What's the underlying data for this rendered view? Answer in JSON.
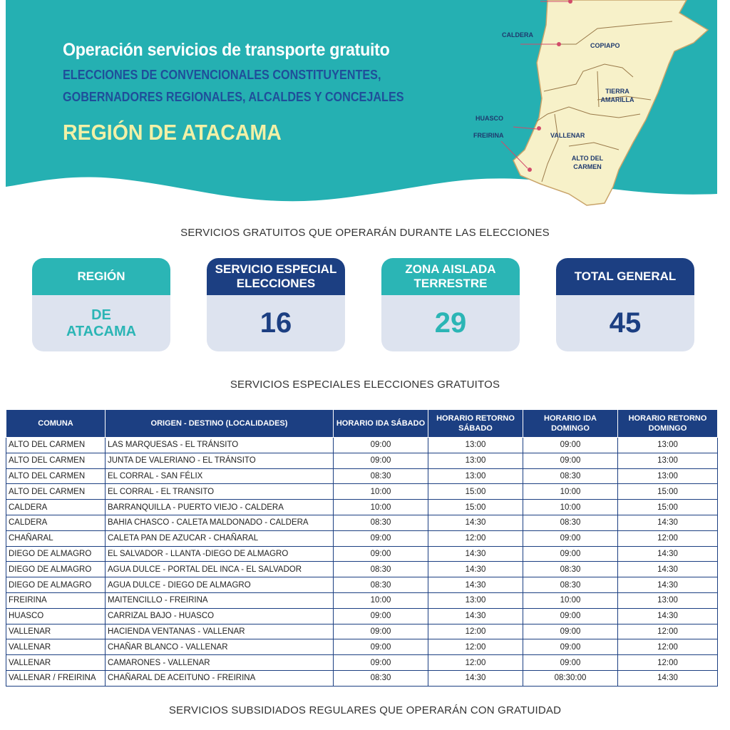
{
  "header": {
    "title": "Operación servicios de transporte gratuito",
    "subtitle_line1": "ELECCIONES DE CONVENCIONALES CONSTITUYENTES,",
    "subtitle_line2": "GOBERNADORES REGIONALES, ALCALDES Y CONCEJALES",
    "region": "REGIÓN DE ATACAMA"
  },
  "map": {
    "labels": {
      "caldera": "CALDERA",
      "copiapo": "COPIAPO",
      "tierra_amarilla": "TIERRA AMARILLA",
      "huasco": "HUASCO",
      "freirina": "FREIRINA",
      "vallenar": "VALLENAR",
      "alto_del_carmen": "ALTO DEL CARMEN"
    }
  },
  "summary": {
    "heading": "SERVICIOS GRATUITOS QUE OPERARÁN DURANTE LAS ELECCIONES",
    "cards": [
      {
        "label": "REGIÓN",
        "value": "DE ATACAMA"
      },
      {
        "label": "SERVICIO ESPECIAL ELECCIONES",
        "value": "16"
      },
      {
        "label": "ZONA AISLADA TERRESTRE",
        "value": "29"
      },
      {
        "label": "TOTAL GENERAL",
        "value": "45"
      }
    ]
  },
  "special": {
    "heading": "SERVICIOS ESPECIALES ELECCIONES GRATUITOS",
    "columns": [
      "COMUNA",
      "ORIGEN - DESTINO (LOCALIDADES)",
      "HORARIO IDA SÁBADO",
      "HORARIO RETORNO SÁBADO",
      "HORARIO IDA DOMINGO",
      "HORARIO RETORNO DOMINGO"
    ],
    "rows": [
      [
        "ALTO DEL CARMEN",
        "LAS MARQUESAS - EL TRÁNSITO",
        "09:00",
        "13:00",
        "09:00",
        "13:00"
      ],
      [
        "ALTO DEL CARMEN",
        "JUNTA DE VALERIANO - EL TRÁNSITO",
        "09:00",
        "13:00",
        "09:00",
        "13:00"
      ],
      [
        "ALTO DEL CARMEN",
        "EL CORRAL - SAN FÉLIX",
        "08:30",
        "13:00",
        "08:30",
        "13:00"
      ],
      [
        "ALTO DEL CARMEN",
        "EL CORRAL - EL TRANSITO",
        "10:00",
        "15:00",
        "10:00",
        "15:00"
      ],
      [
        "CALDERA",
        "BARRANQUILLA - PUERTO VIEJO - CALDERA",
        "10:00",
        "15:00",
        "10:00",
        "15:00"
      ],
      [
        "CALDERA",
        "BAHIA CHASCO - CALETA MALDONADO - CALDERA",
        "08:30",
        "14:30",
        "08:30",
        "14:30"
      ],
      [
        "CHAÑARAL",
        "CALETA PAN DE AZUCAR - CHAÑARAL",
        "09:00",
        "12:00",
        "09:00",
        "12:00"
      ],
      [
        "DIEGO DE ALMAGRO",
        "EL SALVADOR - LLANTA  -DIEGO DE ALMAGRO",
        "09:00",
        "14:30",
        "09:00",
        "14:30"
      ],
      [
        "DIEGO DE ALMAGRO",
        "AGUA DULCE - PORTAL DEL INCA - EL SALVADOR",
        "08:30",
        "14:30",
        "08:30",
        "14:30"
      ],
      [
        "DIEGO DE ALMAGRO",
        "AGUA DULCE - DIEGO DE ALMAGRO",
        "08:30",
        "14:30",
        "08:30",
        "14:30"
      ],
      [
        "FREIRINA",
        "MAITENCILLO - FREIRINA",
        "10:00",
        "13:00",
        "10:00",
        "13:00"
      ],
      [
        "HUASCO",
        "CARRIZAL BAJO - HUASCO",
        "09:00",
        "14:30",
        "09:00",
        "14:30"
      ],
      [
        "VALLENAR",
        "HACIENDA VENTANAS - VALLENAR",
        "09:00",
        "12:00",
        "09:00",
        "12:00"
      ],
      [
        "VALLENAR",
        "CHAÑAR BLANCO - VALLENAR",
        "09:00",
        "12:00",
        "09:00",
        "12:00"
      ],
      [
        "VALLENAR",
        "CAMARONES - VALLENAR",
        "09:00",
        "12:00",
        "09:00",
        "12:00"
      ],
      [
        "VALLENAR / FREIRINA",
        "CHAÑARAL DE ACEITUNO - FREIRINA",
        "08:30",
        "14:30",
        "08:30:00",
        "14:30"
      ]
    ]
  },
  "subsidized": {
    "heading": "SERVICIOS SUBSIDIADOS REGULARES QUE OPERARÁN CON GRATUIDAD"
  },
  "colors": {
    "teal": "#2bb5b5",
    "navy": "#1c3f82",
    "map_fill": "#f7f1c9",
    "region_yellow": "#f2f0a6"
  }
}
